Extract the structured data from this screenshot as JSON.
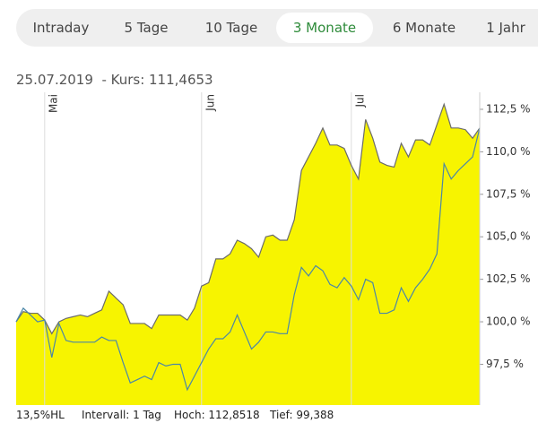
{
  "tabs": [
    "Intraday",
    "5 Tage",
    "10 Tage",
    "3 Monate",
    "6 Monate",
    "1 Jahr"
  ],
  "header": {
    "date": "25.07.2019",
    "quote": "- Kurs: 111,4653"
  },
  "footer": {
    "hl": "13,5%HL",
    "interval": "Intervall: 1 Tag",
    "high": "Hoch: 112,8518",
    "low": "Tief: 99,388"
  },
  "chart_data": {
    "type": "area",
    "categories": [
      null,
      null,
      null,
      null,
      "Mai",
      null,
      null,
      null,
      null,
      null,
      null,
      null,
      null,
      null,
      null,
      null,
      null,
      null,
      null,
      null,
      null,
      null,
      null,
      null,
      null,
      null,
      "Jun",
      null,
      null,
      null,
      null,
      null,
      null,
      null,
      null,
      null,
      null,
      null,
      null,
      null,
      null,
      null,
      null,
      null,
      null,
      null,
      null,
      "Jul",
      null,
      null,
      null,
      null,
      null,
      null,
      null,
      null,
      null,
      null,
      null,
      null,
      null,
      null,
      null,
      null,
      null,
      null
    ],
    "series": [
      {
        "color": "#6b6b6b",
        "fill": "#f7f400",
        "values": [
          100.0,
          100.6,
          100.5,
          100.5,
          100.1,
          99.3,
          100.0,
          100.2,
          100.3,
          100.4,
          100.3,
          100.5,
          100.7,
          101.8,
          101.4,
          101.0,
          99.9,
          99.9,
          99.9,
          99.6,
          100.4,
          100.4,
          100.4,
          100.4,
          100.1,
          100.8,
          102.1,
          102.3,
          103.7,
          103.7,
          104.0,
          104.8,
          104.6,
          104.3,
          103.8,
          105.0,
          105.1,
          104.8,
          104.8,
          106.0,
          108.9,
          109.7,
          110.5,
          111.4,
          110.4,
          110.4,
          110.2,
          109.2,
          108.4,
          111.9,
          110.8,
          109.4,
          109.2,
          109.1,
          110.5,
          109.7,
          110.7,
          110.7,
          110.4,
          111.6,
          112.8,
          111.4,
          111.4,
          111.3,
          110.8,
          111.4
        ]
      },
      {
        "color": "#4a86a8",
        "values": [
          100.0,
          100.8,
          100.4,
          100.0,
          100.1,
          97.9,
          99.9,
          98.9,
          98.8,
          98.8,
          98.8,
          98.8,
          99.1,
          98.9,
          98.9,
          97.6,
          96.4,
          96.6,
          96.8,
          96.6,
          97.6,
          97.4,
          97.5,
          97.5,
          96.0,
          96.8,
          97.6,
          98.4,
          99.0,
          99.0,
          99.4,
          100.4,
          99.4,
          98.4,
          98.8,
          99.4,
          99.4,
          99.3,
          99.3,
          101.6,
          103.2,
          102.7,
          103.3,
          103.0,
          102.2,
          102.0,
          102.6,
          102.1,
          101.3,
          102.5,
          102.3,
          100.5,
          100.5,
          100.7,
          102.0,
          101.2,
          102.0,
          102.5,
          103.1,
          104.0,
          109.3,
          108.4,
          108.9,
          109.3,
          109.7,
          111.4
        ]
      }
    ],
    "ylim": [
      95.1,
      113.5
    ],
    "yticks": [
      {
        "value": 97.5,
        "label": "97,5 %"
      },
      {
        "value": 100,
        "label": "100,0 %"
      },
      {
        "value": 102.5,
        "label": "102,5 %"
      },
      {
        "value": 105,
        "label": "105,0 %"
      },
      {
        "value": 107.5,
        "label": "107,5 %"
      },
      {
        "value": 110,
        "label": "110,0 %"
      },
      {
        "value": 112.5,
        "label": "112,5 %"
      }
    ],
    "grid": true
  }
}
